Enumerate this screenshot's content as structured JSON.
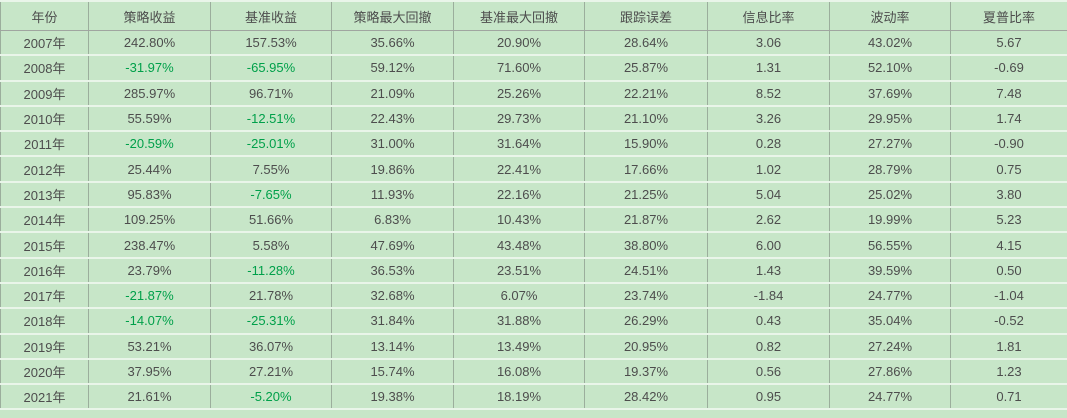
{
  "table": {
    "columns": [
      "年份",
      "策略收益",
      "基准收益",
      "策略最大回撤",
      "基准最大回撤",
      "跟踪误差",
      "信息比率",
      "波动率",
      "夏普比率"
    ],
    "rows": [
      {
        "year": "2007年",
        "values": [
          "242.80%",
          "157.53%",
          "35.66%",
          "20.90%",
          "28.64%",
          "3.06",
          "43.02%",
          "5.67"
        ]
      },
      {
        "year": "2008年",
        "values": [
          "-31.97%",
          "-65.95%",
          "59.12%",
          "71.60%",
          "25.87%",
          "1.31",
          "52.10%",
          "-0.69"
        ]
      },
      {
        "year": "2009年",
        "values": [
          "285.97%",
          "96.71%",
          "21.09%",
          "25.26%",
          "22.21%",
          "8.52",
          "37.69%",
          "7.48"
        ]
      },
      {
        "year": "2010年",
        "values": [
          "55.59%",
          "-12.51%",
          "22.43%",
          "29.73%",
          "21.10%",
          "3.26",
          "29.95%",
          "1.74"
        ]
      },
      {
        "year": "2011年",
        "values": [
          "-20.59%",
          "-25.01%",
          "31.00%",
          "31.64%",
          "15.90%",
          "0.28",
          "27.27%",
          "-0.90"
        ]
      },
      {
        "year": "2012年",
        "values": [
          "25.44%",
          "7.55%",
          "19.86%",
          "22.41%",
          "17.66%",
          "1.02",
          "28.79%",
          "0.75"
        ]
      },
      {
        "year": "2013年",
        "values": [
          "95.83%",
          "-7.65%",
          "11.93%",
          "22.16%",
          "21.25%",
          "5.04",
          "25.02%",
          "3.80"
        ]
      },
      {
        "year": "2014年",
        "values": [
          "109.25%",
          "51.66%",
          "6.83%",
          "10.43%",
          "21.87%",
          "2.62",
          "19.99%",
          "5.23"
        ]
      },
      {
        "year": "2015年",
        "values": [
          "238.47%",
          "5.58%",
          "47.69%",
          "43.48%",
          "38.80%",
          "6.00",
          "56.55%",
          "4.15"
        ]
      },
      {
        "year": "2016年",
        "values": [
          "23.79%",
          "-11.28%",
          "36.53%",
          "23.51%",
          "24.51%",
          "1.43",
          "39.59%",
          "0.50"
        ]
      },
      {
        "year": "2017年",
        "values": [
          "-21.87%",
          "21.78%",
          "32.68%",
          "6.07%",
          "23.74%",
          "-1.84",
          "24.77%",
          "-1.04"
        ]
      },
      {
        "year": "2018年",
        "values": [
          "-14.07%",
          "-25.31%",
          "31.84%",
          "31.88%",
          "26.29%",
          "0.43",
          "35.04%",
          "-0.52"
        ]
      },
      {
        "year": "2019年",
        "values": [
          "53.21%",
          "36.07%",
          "13.14%",
          "13.49%",
          "20.95%",
          "0.82",
          "27.24%",
          "1.81"
        ]
      },
      {
        "year": "2020年",
        "values": [
          "37.95%",
          "27.21%",
          "15.74%",
          "16.08%",
          "19.37%",
          "0.56",
          "27.86%",
          "1.23"
        ]
      },
      {
        "year": "2021年",
        "values": [
          "21.61%",
          "-5.20%",
          "19.38%",
          "18.19%",
          "28.42%",
          "0.95",
          "24.77%",
          "0.71"
        ]
      }
    ]
  },
  "colors": {
    "background": "#c7e6c8",
    "text": "#4d4d4d",
    "negative_return": "#00a04a",
    "column_divider": "#9bae9c",
    "row_separator": "#e9f5e9",
    "header_underline": "#a0a5a0"
  }
}
